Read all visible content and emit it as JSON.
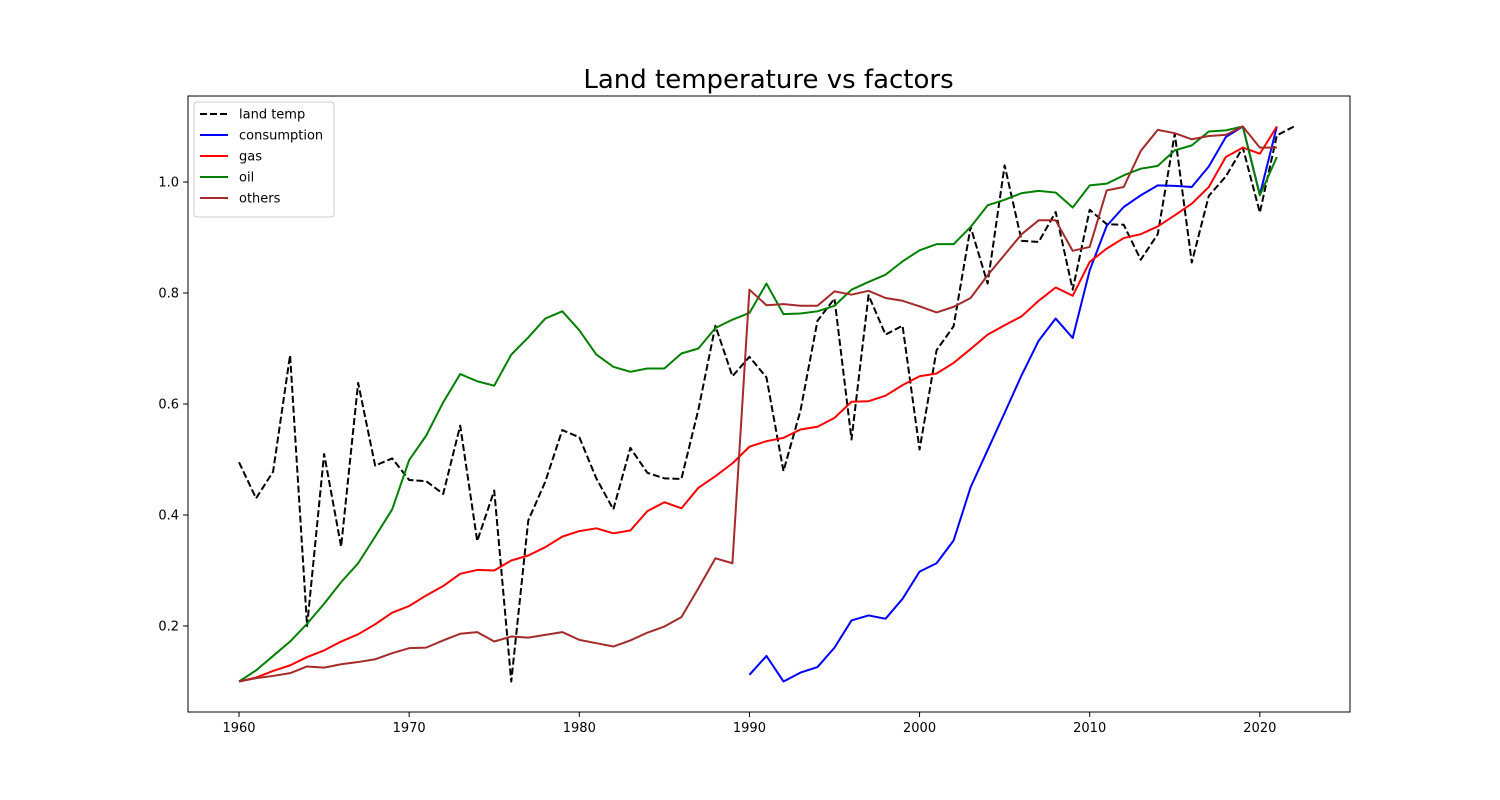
{
  "chart_data": {
    "type": "line",
    "title": "Land temperature vs factors",
    "xlabel": "",
    "ylabel": "",
    "xlim": [
      1957,
      2025.3
    ],
    "ylim": [
      0.045,
      1.155
    ],
    "xticks": [
      1960,
      1970,
      1980,
      1990,
      2000,
      2010,
      2020
    ],
    "yticks": [
      0.2,
      0.4,
      0.6,
      0.8,
      1.0
    ],
    "ytick_labels": [
      "0.2",
      "0.4",
      "0.6",
      "0.8",
      "1.0"
    ],
    "grid": false,
    "legend_position": "top-left",
    "series": [
      {
        "name": "land temp",
        "color": "#000000",
        "style": "dashed",
        "x": [
          1960,
          1961,
          1962,
          1963,
          1964,
          1965,
          1966,
          1967,
          1968,
          1969,
          1970,
          1971,
          1972,
          1973,
          1974,
          1975,
          1976,
          1977,
          1978,
          1979,
          1980,
          1981,
          1982,
          1983,
          1984,
          1985,
          1986,
          1987,
          1988,
          1989,
          1990,
          1991,
          1992,
          1993,
          1994,
          1995,
          1996,
          1997,
          1998,
          1999,
          2000,
          2001,
          2002,
          2003,
          2004,
          2005,
          2006,
          2007,
          2008,
          2009,
          2010,
          2011,
          2012,
          2013,
          2014,
          2015,
          2016,
          2017,
          2018,
          2019,
          2020,
          2021,
          2022
        ],
        "y": [
          0.495,
          0.43,
          0.478,
          0.688,
          0.2,
          0.51,
          0.343,
          0.638,
          0.489,
          0.502,
          0.463,
          0.461,
          0.438,
          0.561,
          0.353,
          0.444,
          0.1,
          0.39,
          0.46,
          0.553,
          0.54,
          0.466,
          0.41,
          0.521,
          0.476,
          0.466,
          0.465,
          0.59,
          0.741,
          0.65,
          0.685,
          0.648,
          0.479,
          0.588,
          0.75,
          0.79,
          0.536,
          0.796,
          0.725,
          0.741,
          0.518,
          0.697,
          0.74,
          0.919,
          0.817,
          1.03,
          0.894,
          0.892,
          0.946,
          0.806,
          0.95,
          0.924,
          0.923,
          0.86,
          0.906,
          1.087,
          0.855,
          0.975,
          1.01,
          1.062,
          0.945,
          1.084,
          1.1
        ]
      },
      {
        "name": "consumption",
        "color": "#0000ff",
        "style": "solid",
        "x": [
          1990,
          1991,
          1992,
          1993,
          1994,
          1995,
          1996,
          1997,
          1998,
          1999,
          2000,
          2001,
          2002,
          2003,
          2004,
          2005,
          2006,
          2007,
          2008,
          2009,
          2010,
          2011,
          2012,
          2013,
          2014,
          2015,
          2016,
          2017,
          2018,
          2019,
          2020,
          2021
        ],
        "y": [
          0.112,
          0.146,
          0.1,
          0.116,
          0.126,
          0.161,
          0.21,
          0.219,
          0.213,
          0.249,
          0.298,
          0.313,
          0.354,
          0.45,
          0.517,
          0.584,
          0.652,
          0.714,
          0.754,
          0.719,
          0.841,
          0.921,
          0.955,
          0.976,
          0.994,
          0.993,
          0.991,
          1.028,
          1.081,
          1.1,
          0.977,
          1.1
        ]
      },
      {
        "name": "gas",
        "color": "#ff0000",
        "style": "solid",
        "x": [
          1960,
          1961,
          1962,
          1963,
          1964,
          1965,
          1966,
          1967,
          1968,
          1969,
          1970,
          1971,
          1972,
          1973,
          1974,
          1975,
          1976,
          1977,
          1978,
          1979,
          1980,
          1981,
          1982,
          1983,
          1984,
          1985,
          1986,
          1987,
          1988,
          1989,
          1990,
          1991,
          1992,
          1993,
          1994,
          1995,
          1996,
          1997,
          1998,
          1999,
          2000,
          2001,
          2002,
          2003,
          2004,
          2005,
          2006,
          2007,
          2008,
          2009,
          2010,
          2011,
          2012,
          2013,
          2014,
          2015,
          2016,
          2017,
          2018,
          2019,
          2020,
          2021
        ],
        "y": [
          0.1,
          0.107,
          0.119,
          0.129,
          0.144,
          0.156,
          0.172,
          0.185,
          0.203,
          0.224,
          0.236,
          0.255,
          0.272,
          0.294,
          0.301,
          0.3,
          0.318,
          0.327,
          0.342,
          0.361,
          0.371,
          0.376,
          0.367,
          0.372,
          0.407,
          0.423,
          0.412,
          0.449,
          0.47,
          0.493,
          0.523,
          0.533,
          0.539,
          0.554,
          0.559,
          0.575,
          0.604,
          0.605,
          0.615,
          0.634,
          0.65,
          0.655,
          0.674,
          0.699,
          0.725,
          0.742,
          0.758,
          0.786,
          0.81,
          0.795,
          0.856,
          0.88,
          0.899,
          0.906,
          0.92,
          0.94,
          0.961,
          0.991,
          1.045,
          1.062,
          1.051,
          1.1
        ]
      },
      {
        "name": "oil",
        "color": "#008000",
        "style": "solid",
        "x": [
          1960,
          1961,
          1962,
          1963,
          1964,
          1965,
          1966,
          1967,
          1968,
          1969,
          1970,
          1971,
          1972,
          1973,
          1974,
          1975,
          1976,
          1977,
          1978,
          1979,
          1980,
          1981,
          1982,
          1983,
          1984,
          1985,
          1986,
          1987,
          1988,
          1989,
          1990,
          1991,
          1992,
          1993,
          1994,
          1995,
          1996,
          1997,
          1998,
          1999,
          2000,
          2001,
          2002,
          2003,
          2004,
          2005,
          2006,
          2007,
          2008,
          2009,
          2010,
          2011,
          2012,
          2013,
          2014,
          2015,
          2016,
          2017,
          2018,
          2019,
          2020,
          2021
        ],
        "y": [
          0.1,
          0.12,
          0.146,
          0.172,
          0.204,
          0.24,
          0.279,
          0.313,
          0.361,
          0.41,
          0.499,
          0.543,
          0.603,
          0.654,
          0.641,
          0.633,
          0.689,
          0.72,
          0.754,
          0.767,
          0.733,
          0.689,
          0.667,
          0.658,
          0.664,
          0.664,
          0.691,
          0.7,
          0.737,
          0.752,
          0.764,
          0.817,
          0.762,
          0.763,
          0.767,
          0.777,
          0.806,
          0.82,
          0.833,
          0.857,
          0.877,
          0.888,
          0.888,
          0.919,
          0.958,
          0.968,
          0.98,
          0.984,
          0.981,
          0.954,
          0.994,
          0.997,
          1.012,
          1.024,
          1.029,
          1.057,
          1.066,
          1.091,
          1.093,
          1.1,
          0.976,
          1.045
        ]
      },
      {
        "name": "others",
        "color": "#a52a2a",
        "style": "solid",
        "x": [
          1960,
          1961,
          1962,
          1963,
          1964,
          1965,
          1966,
          1967,
          1968,
          1969,
          1970,
          1971,
          1972,
          1973,
          1974,
          1975,
          1976,
          1977,
          1978,
          1979,
          1980,
          1981,
          1982,
          1983,
          1984,
          1985,
          1986,
          1987,
          1988,
          1989,
          1990,
          1991,
          1992,
          1993,
          1994,
          1995,
          1996,
          1997,
          1998,
          1999,
          2000,
          2001,
          2002,
          2003,
          2004,
          2005,
          2006,
          2007,
          2008,
          2009,
          2010,
          2011,
          2012,
          2013,
          2014,
          2015,
          2016,
          2017,
          2018,
          2019,
          2020,
          2021
        ],
        "y": [
          0.1,
          0.106,
          0.11,
          0.115,
          0.127,
          0.125,
          0.131,
          0.135,
          0.14,
          0.151,
          0.16,
          0.161,
          0.174,
          0.186,
          0.189,
          0.172,
          0.181,
          0.179,
          0.184,
          0.189,
          0.175,
          0.169,
          0.163,
          0.174,
          0.188,
          0.199,
          0.216,
          0.268,
          0.322,
          0.313,
          0.806,
          0.778,
          0.78,
          0.777,
          0.777,
          0.803,
          0.797,
          0.804,
          0.791,
          0.786,
          0.776,
          0.765,
          0.775,
          0.791,
          0.832,
          0.869,
          0.906,
          0.931,
          0.931,
          0.876,
          0.883,
          0.985,
          0.991,
          1.056,
          1.094,
          1.088,
          1.077,
          1.083,
          1.085,
          1.1,
          1.062,
          1.062
        ]
      }
    ]
  }
}
